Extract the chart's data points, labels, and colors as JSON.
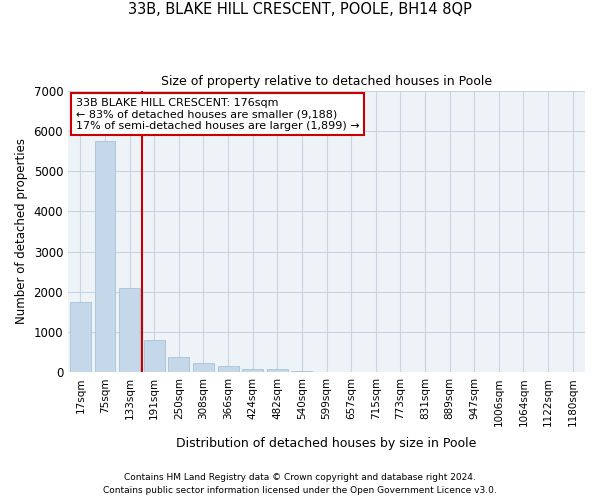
{
  "title1": "33B, BLAKE HILL CRESCENT, POOLE, BH14 8QP",
  "title2": "Size of property relative to detached houses in Poole",
  "xlabel": "Distribution of detached houses by size in Poole",
  "ylabel": "Number of detached properties",
  "categories": [
    "17sqm",
    "75sqm",
    "133sqm",
    "191sqm",
    "250sqm",
    "308sqm",
    "366sqm",
    "424sqm",
    "482sqm",
    "540sqm",
    "599sqm",
    "657sqm",
    "715sqm",
    "773sqm",
    "831sqm",
    "889sqm",
    "947sqm",
    "1006sqm",
    "1064sqm",
    "1122sqm",
    "1180sqm"
  ],
  "values": [
    1750,
    5750,
    2100,
    800,
    380,
    230,
    150,
    90,
    70,
    25,
    0,
    0,
    0,
    0,
    0,
    0,
    0,
    0,
    0,
    0,
    0
  ],
  "bar_color": "#c5d8ea",
  "bar_edge_color": "#a8c0d8",
  "property_vline_color": "#cc0000",
  "vline_position": 2.5,
  "annotation_line1": "33B BLAKE HILL CRESCENT: 176sqm",
  "annotation_line2": "← 83% of detached houses are smaller (9,188)",
  "annotation_line3": "17% of semi-detached houses are larger (1,899) →",
  "annotation_box_facecolor": "#ffffff",
  "annotation_box_edgecolor": "#cc0000",
  "grid_color": "#c8d4e0",
  "background_color": "#eef3f8",
  "ylim_max": 7000,
  "yticks": [
    0,
    1000,
    2000,
    3000,
    4000,
    5000,
    6000,
    7000
  ],
  "footnote1": "Contains HM Land Registry data © Crown copyright and database right 2024.",
  "footnote2": "Contains public sector information licensed under the Open Government Licence v3.0."
}
